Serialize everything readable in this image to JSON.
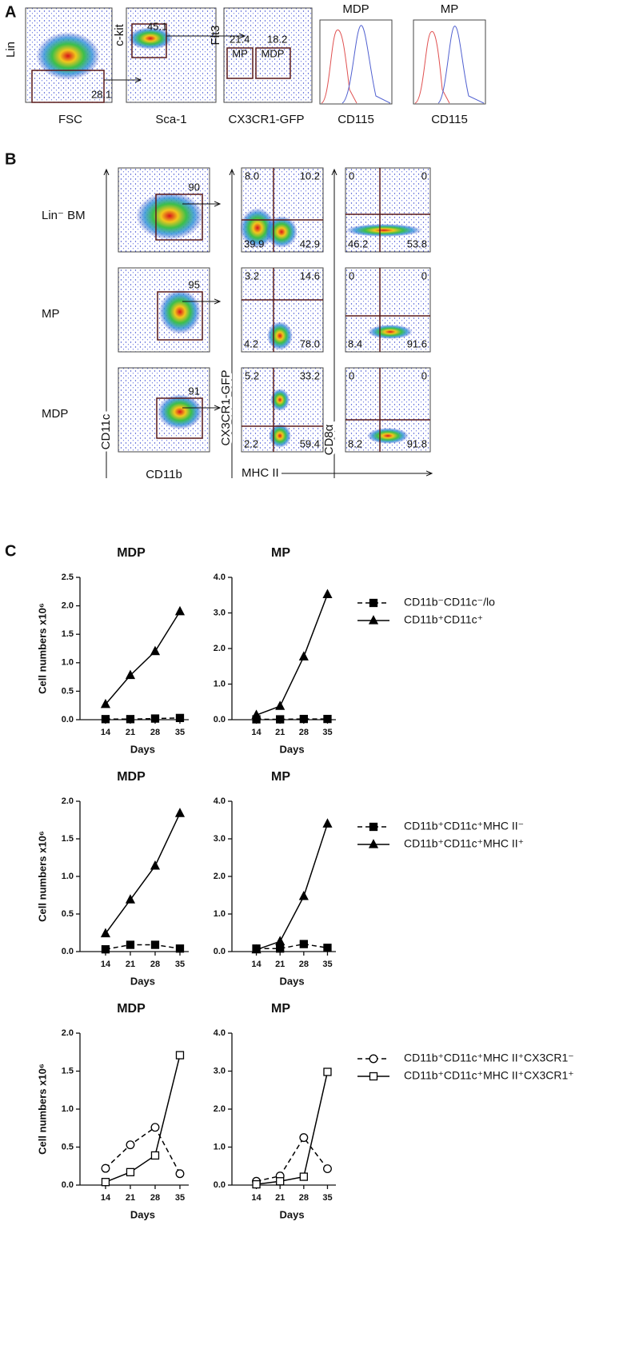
{
  "panel_labels": [
    "A",
    "B",
    "C"
  ],
  "panel_a": {
    "plots": [
      {
        "y_label": "Lin",
        "x_label": "FSC",
        "gates": [
          "28.1"
        ]
      },
      {
        "y_label": "c-kit",
        "x_label": "Sca-1",
        "gates": [
          "45.1"
        ]
      },
      {
        "y_label": "Flt3",
        "x_label": "CX3CR1-GFP",
        "gates": [
          "21.4",
          "18.2"
        ],
        "gate_names": [
          "MP",
          "MDP"
        ]
      }
    ],
    "histograms": [
      {
        "title": "MDP",
        "x_label": "CD115"
      },
      {
        "title": "MP",
        "x_label": "CD115"
      }
    ]
  },
  "panel_b": {
    "y_axis": "CD11c",
    "x_axis": "CD11b",
    "col2_y_axis": "CX3CR1-GFP",
    "col3_x_axis": "MHC II",
    "col3_y_axis": "CD8α",
    "rows": [
      {
        "label": "Lin⁻ BM",
        "gate": "90",
        "cx3cr1_quadrants": [
          "8.0",
          "10.2",
          "39.9",
          "42.9"
        ],
        "cd8_quadrants": [
          "0",
          "0",
          "46.2",
          "53.8"
        ]
      },
      {
        "label": "MP",
        "gate": "95",
        "cx3cr1_quadrants": [
          "3.2",
          "14.6",
          "4.2",
          "78.0"
        ],
        "cd8_quadrants": [
          "0",
          "0",
          "8.4",
          "91.6"
        ]
      },
      {
        "label": "MDP",
        "gate": "91",
        "cx3cr1_quadrants": [
          "5.2",
          "33.2",
          "2.2",
          "59.4"
        ],
        "cd8_quadrants": [
          "0",
          "0",
          "8.2",
          "91.8"
        ]
      }
    ]
  },
  "chart_data": [
    {
      "type": "line",
      "title": "MDP",
      "y_label": "Cell numbers x10⁶",
      "x_label": "Days",
      "categories": [
        "14",
        "21",
        "28",
        "35"
      ],
      "ylim": [
        0,
        2.5
      ],
      "yticks": [
        {
          "value": 0,
          "label": "0.0"
        },
        0.5,
        {
          "value": 1,
          "label": "1.0"
        },
        1.5,
        {
          "value": 2,
          "label": "2.0"
        },
        2.5
      ],
      "series": [
        {
          "color": "#000000",
          "marker": "square",
          "filled": true,
          "dashed": true,
          "values": [
            0.01,
            0.01,
            0.02,
            0.03
          ]
        },
        {
          "color": "#000000",
          "marker": "triangle",
          "filled": true,
          "dashed": false,
          "values": [
            0.27,
            0.78,
            1.2,
            1.9
          ]
        }
      ]
    },
    {
      "type": "line",
      "title": "MP",
      "x_label": "Days",
      "categories": [
        "14",
        "21",
        "28",
        "35"
      ],
      "legend": "right",
      "ylim": [
        0,
        4
      ],
      "yticks": [
        {
          "value": 0,
          "label": "0.0"
        },
        {
          "value": 1,
          "label": "1.0"
        },
        {
          "value": 2,
          "label": "2.0"
        },
        {
          "value": 3,
          "label": "3.0"
        },
        {
          "value": 4,
          "label": "4.0"
        }
      ],
      "series": [
        {
          "name": "CD11b⁻CD11c⁻/lo",
          "color": "#000000",
          "marker": "square",
          "filled": true,
          "dashed": true,
          "values": [
            0.01,
            0.01,
            0.02,
            0.02
          ]
        },
        {
          "name": "CD11b⁺CD11c⁺",
          "color": "#000000",
          "marker": "triangle",
          "filled": true,
          "dashed": false,
          "values": [
            0.13,
            0.38,
            1.77,
            3.52
          ]
        }
      ]
    },
    {
      "type": "line",
      "title": "MDP",
      "y_label": "Cell numbers x10⁶",
      "x_label": "Days",
      "categories": [
        "14",
        "21",
        "28",
        "35"
      ],
      "ylim": [
        0,
        2
      ],
      "yticks": [
        {
          "value": 0,
          "label": "0.0"
        },
        0.5,
        {
          "value": 1,
          "label": "1.0"
        },
        1.5,
        {
          "value": 2,
          "label": "2.0"
        }
      ],
      "series": [
        {
          "color": "#000000",
          "marker": "square",
          "filled": true,
          "dashed": true,
          "values": [
            0.03,
            0.09,
            0.09,
            0.04
          ]
        },
        {
          "color": "#000000",
          "marker": "triangle",
          "filled": true,
          "dashed": false,
          "values": [
            0.24,
            0.69,
            1.14,
            1.84
          ]
        }
      ]
    },
    {
      "type": "line",
      "title": "MP",
      "x_label": "Days",
      "categories": [
        "14",
        "21",
        "28",
        "35"
      ],
      "legend": "right",
      "ylim": [
        0,
        4
      ],
      "yticks": [
        {
          "value": 0,
          "label": "0.0"
        },
        {
          "value": 1,
          "label": "1.0"
        },
        {
          "value": 2,
          "label": "2.0"
        },
        {
          "value": 3,
          "label": "3.0"
        },
        {
          "value": 4,
          "label": "4.0"
        }
      ],
      "series": [
        {
          "name": "CD11b⁺CD11c⁺MHC II⁻",
          "color": "#000000",
          "marker": "square",
          "filled": true,
          "dashed": true,
          "values": [
            0.08,
            0.08,
            0.2,
            0.1
          ]
        },
        {
          "name": "CD11b⁺CD11c⁺MHC II⁺",
          "color": "#000000",
          "marker": "triangle",
          "filled": true,
          "dashed": false,
          "values": [
            0.05,
            0.27,
            1.47,
            3.4
          ]
        }
      ]
    },
    {
      "type": "line",
      "title": "MDP",
      "y_label": "Cell numbers x10⁶",
      "x_label": "Days",
      "categories": [
        "14",
        "21",
        "28",
        "35"
      ],
      "ylim": [
        0,
        2
      ],
      "yticks": [
        {
          "value": 0,
          "label": "0.0"
        },
        0.5,
        {
          "value": 1,
          "label": "1.0"
        },
        1.5,
        {
          "value": 2,
          "label": "2.0"
        }
      ],
      "series": [
        {
          "color": "#000000",
          "marker": "circle",
          "filled": false,
          "dashed": true,
          "values": [
            0.22,
            0.53,
            0.76,
            0.15
          ]
        },
        {
          "color": "#000000",
          "marker": "square",
          "filled": false,
          "dashed": false,
          "values": [
            0.04,
            0.17,
            0.39,
            1.71
          ]
        }
      ]
    },
    {
      "type": "line",
      "title": "MP",
      "x_label": "Days",
      "categories": [
        "14",
        "21",
        "28",
        "35"
      ],
      "legend": "right",
      "ylim": [
        0,
        4
      ],
      "yticks": [
        {
          "value": 0,
          "label": "0.0"
        },
        {
          "value": 1,
          "label": "1.0"
        },
        {
          "value": 2,
          "label": "2.0"
        },
        {
          "value": 3,
          "label": "3.0"
        },
        {
          "value": 4,
          "label": "4.0"
        }
      ],
      "series": [
        {
          "name": "CD11b⁺CD11c⁺MHC II⁺CX3CR1⁻",
          "color": "#000000",
          "marker": "circle",
          "filled": false,
          "dashed": true,
          "values": [
            0.1,
            0.24,
            1.25,
            0.43
          ]
        },
        {
          "name": "CD11b⁺CD11c⁺MHC II⁺CX3CR1⁺",
          "color": "#000000",
          "marker": "square",
          "filled": false,
          "dashed": false,
          "values": [
            0.02,
            0.1,
            0.22,
            2.98
          ]
        }
      ]
    }
  ]
}
